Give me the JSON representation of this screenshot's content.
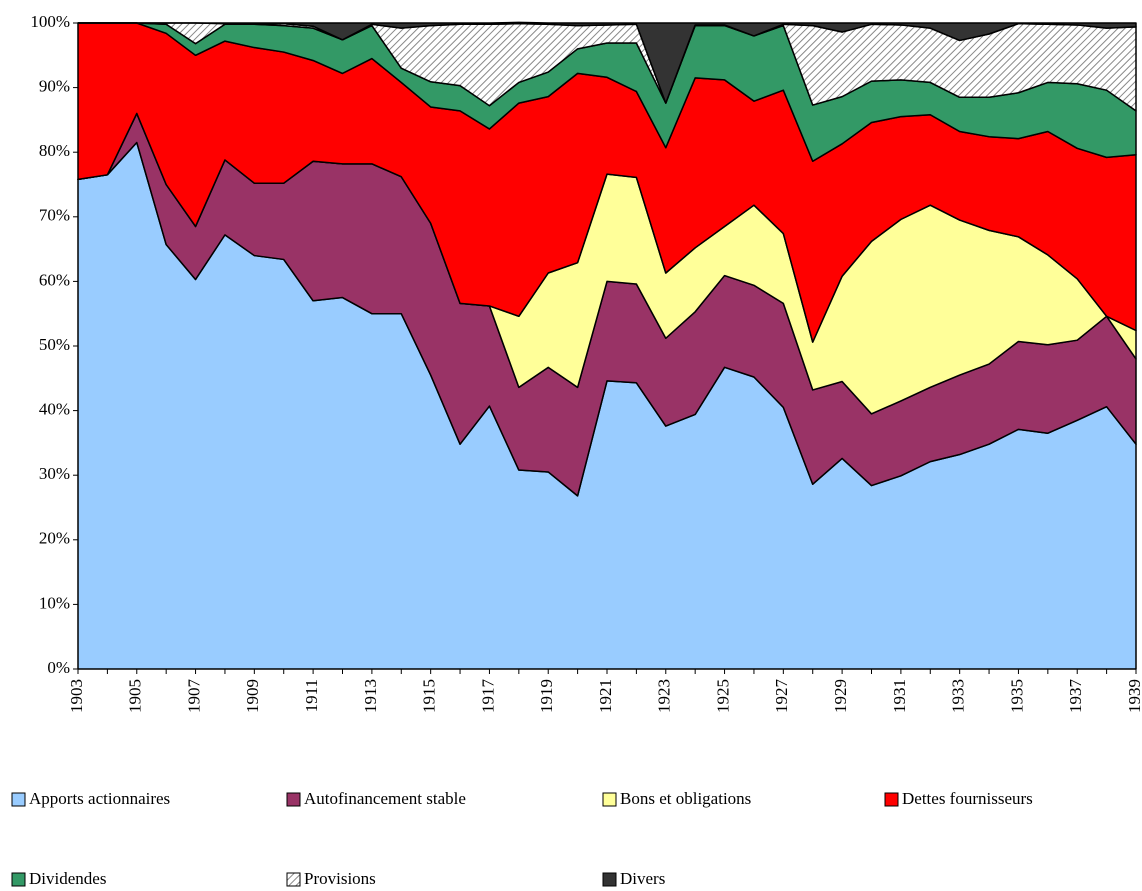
{
  "chart_data": {
    "type": "stacked_area_100",
    "categories": [
      "1903",
      null,
      "1905",
      null,
      "1907",
      null,
      "1909",
      null,
      "1911",
      null,
      "1913",
      null,
      "1915",
      null,
      "1917",
      null,
      "1919",
      null,
      "1921",
      null,
      "1923",
      null,
      "1925",
      null,
      "1927",
      null,
      "1929",
      null,
      "1931",
      null,
      "1933",
      null,
      "1935",
      null,
      "1937",
      null,
      "1939"
    ],
    "ylim": [
      0,
      100
    ],
    "yticks": [
      {
        "value": 0,
        "label": "0%"
      },
      {
        "value": 10,
        "label": "10%"
      },
      {
        "value": 20,
        "label": "20%"
      },
      {
        "value": 30,
        "label": "30%"
      },
      {
        "value": 40,
        "label": "40%"
      },
      {
        "value": 50,
        "label": "50%"
      },
      {
        "value": 60,
        "label": "60%"
      },
      {
        "value": 70,
        "label": "70%"
      },
      {
        "value": 80,
        "label": "80%"
      },
      {
        "value": 90,
        "label": "90%"
      },
      {
        "value": 100,
        "label": "100%"
      }
    ],
    "series": [
      {
        "name": "Apports actionnaires",
        "color": "#99ccff",
        "values": [
          75.8,
          76.5,
          81.5,
          65.7,
          60.3,
          67.2,
          64,
          63.4,
          57,
          57.5,
          55,
          55,
          45.5,
          34.8,
          40.7,
          30.8,
          30.5,
          26.8,
          44.6,
          44.3,
          37.6,
          39.4,
          46.7,
          45.2,
          40.5,
          28.6,
          32.6,
          28.4,
          29.9,
          32.1,
          33.2,
          34.8,
          37.1,
          36.5,
          38.5,
          40.6,
          34.8
        ]
      },
      {
        "name": "Autofinancement stable",
        "color": "#993366",
        "values": [
          0,
          0,
          4.5,
          9.3,
          8.2,
          11.6,
          11.2,
          11.8,
          21.6,
          20.7,
          23.2,
          21.2,
          23.5,
          21.8,
          15.5,
          12.8,
          16.2,
          16.8,
          15.4,
          15.3,
          13.6,
          15.9,
          14.2,
          14.2,
          16.1,
          14.6,
          11.9,
          11.1,
          11.6,
          11.5,
          12.3,
          12.4,
          13.6,
          13.7,
          12.4,
          14,
          13.2
        ]
      },
      {
        "name": "Bons et obligations",
        "color": "#ffff99",
        "values": [
          0,
          0,
          0,
          0,
          0,
          0,
          0,
          0,
          0,
          0,
          0,
          0,
          0,
          0,
          0,
          11,
          14.6,
          19.3,
          16.6,
          16.5,
          10.1,
          9.9,
          7.6,
          12.4,
          10.8,
          7.4,
          16.3,
          26.7,
          28.1,
          28.2,
          24,
          20.7,
          16.2,
          13.9,
          9.5,
          0,
          4.4
        ]
      },
      {
        "name": "Dettes fournisseurs",
        "color": "#ff0000",
        "values": [
          24.2,
          23.5,
          14,
          23.4,
          26.5,
          18.4,
          21,
          20.3,
          15.6,
          14,
          16.3,
          14.6,
          18,
          29.8,
          27.4,
          33,
          27.3,
          29.3,
          15,
          13.3,
          19.4,
          26.3,
          22.7,
          16.1,
          22.2,
          28,
          20.5,
          18.4,
          15.9,
          14,
          13.7,
          14.5,
          15.2,
          19.1,
          20.2,
          24.6,
          27.2
        ]
      },
      {
        "name": "Dividendes",
        "color": "#339966",
        "values": [
          0,
          0,
          0,
          1.4,
          1.8,
          2.6,
          3.6,
          4.1,
          5,
          5.2,
          5.1,
          2.2,
          3.9,
          3.9,
          3.6,
          3.2,
          3.8,
          3.8,
          5.3,
          7.5,
          6.9,
          8.1,
          8.4,
          10.1,
          10,
          8.7,
          7.3,
          6.4,
          5.7,
          5,
          5.3,
          6.1,
          7.1,
          7.6,
          10,
          10.4,
          6.8
        ]
      },
      {
        "name": "Provisions",
        "color": "#c0c0c0",
        "pattern": "diagonal",
        "values": [
          0,
          0,
          0,
          0.2,
          3.2,
          0.1,
          0.1,
          0.3,
          0.3,
          0,
          0.2,
          6.2,
          8.7,
          9.5,
          12.6,
          9.1,
          7.4,
          3.6,
          2.8,
          2.9,
          0,
          0.1,
          0.1,
          0,
          0.2,
          12.3,
          10,
          8.8,
          8.5,
          8.4,
          8.8,
          9.8,
          10.7,
          9,
          9.1,
          9.6,
          13
        ]
      },
      {
        "name": "Divers",
        "color": "#333333",
        "values": [
          0,
          0,
          0,
          0,
          0,
          0.1,
          0.1,
          0.1,
          0.5,
          2.6,
          0.2,
          0.8,
          0.4,
          0.2,
          0.2,
          0.2,
          0.2,
          0.4,
          0.3,
          0.2,
          12.4,
          0.3,
          0.3,
          2,
          0.2,
          0.4,
          1.4,
          0.2,
          0.3,
          0.8,
          2.7,
          1.7,
          0.1,
          0.2,
          0.3,
          0.8,
          0.6
        ]
      }
    ]
  }
}
